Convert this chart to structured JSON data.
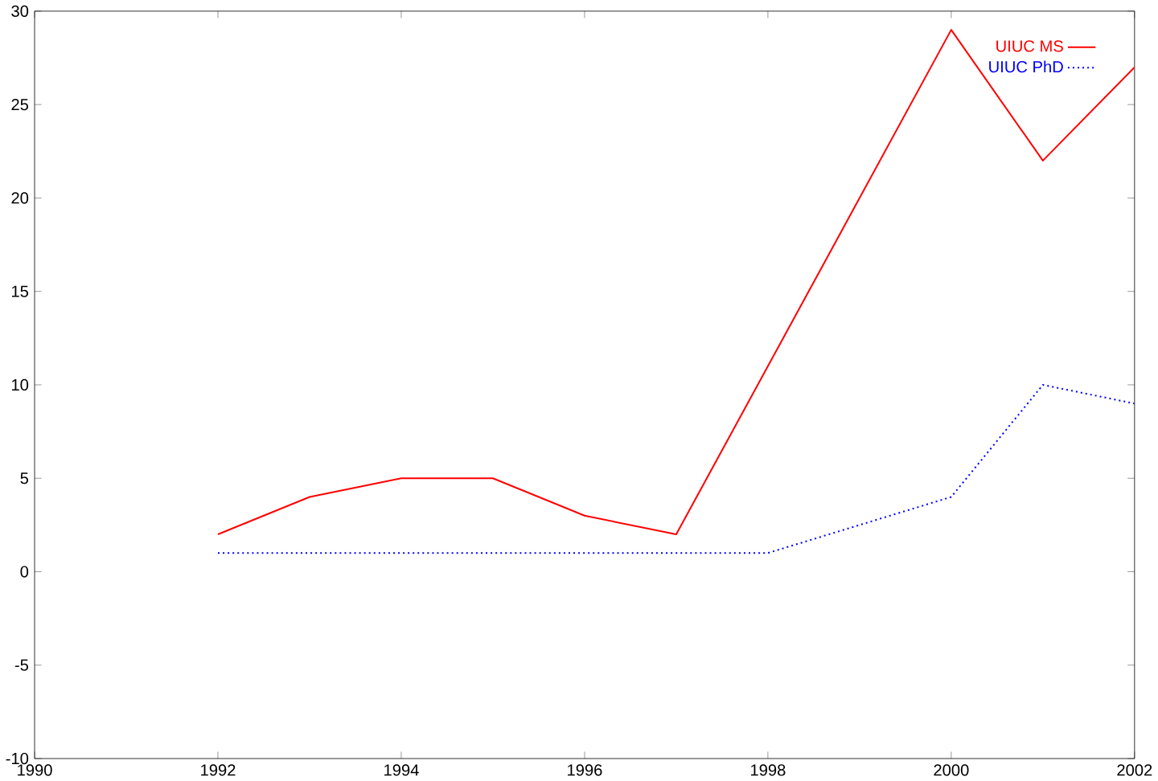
{
  "chart_data": {
    "type": "line",
    "x": [
      1992,
      1993,
      1994,
      1995,
      1996,
      1997,
      2000,
      2001,
      2002
    ],
    "series": [
      {
        "name": "UIUC MS",
        "color": "#ff0000",
        "line_style": "solid",
        "values": [
          2,
          4,
          5,
          5,
          3,
          2,
          29,
          22,
          27
        ]
      },
      {
        "name": "UIUC PhD",
        "color": "#0000ff",
        "line_style": "dotted",
        "values": [
          1,
          1,
          1,
          1,
          1,
          1,
          1,
          4,
          10,
          9
        ],
        "x": [
          1992,
          1993,
          1994,
          1995,
          1996,
          1997,
          1998,
          2000,
          2001,
          2002
        ]
      }
    ],
    "xlim": [
      1990,
      2002
    ],
    "xticks": [
      1990,
      1992,
      1994,
      1996,
      1998,
      2000,
      2002
    ],
    "ylim": [
      -10,
      30
    ],
    "yticks": [
      -10,
      -5,
      0,
      5,
      10,
      15,
      20,
      25,
      30
    ],
    "legend": "top right",
    "grid": false,
    "marker": "none"
  }
}
